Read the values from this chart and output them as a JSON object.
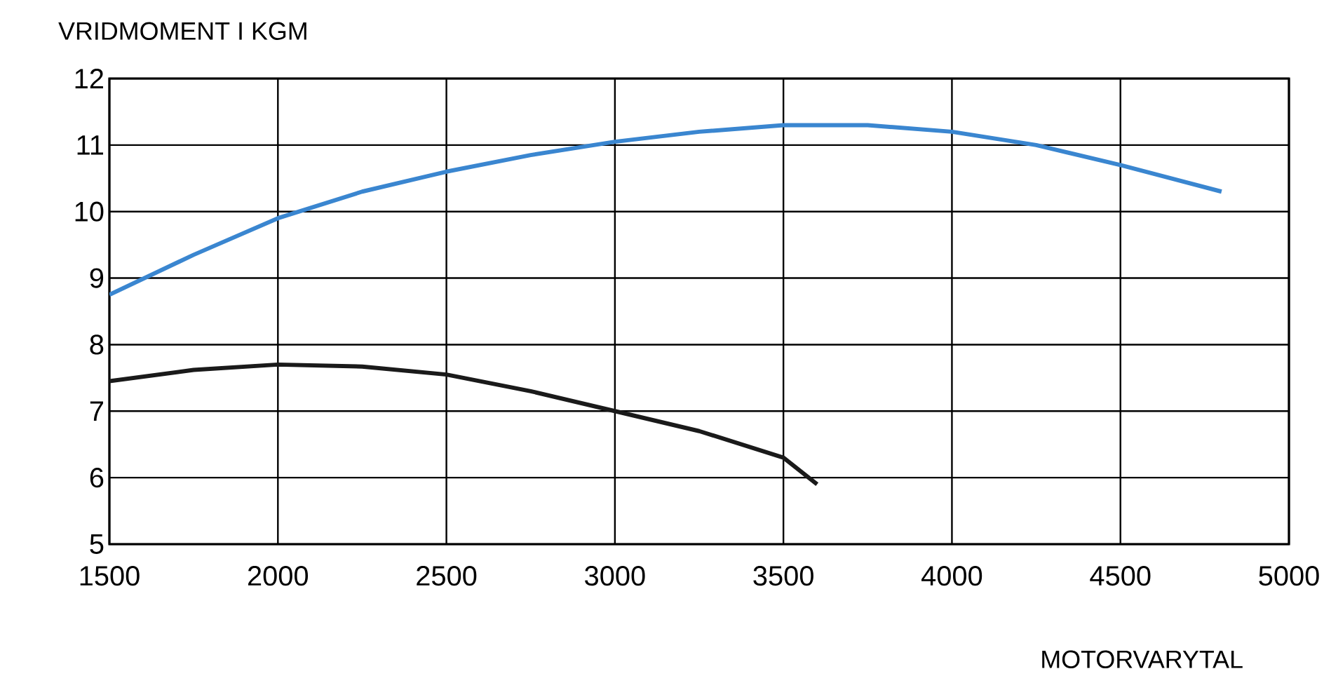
{
  "chart_data": {
    "type": "line",
    "ylabel": "VRIDMOMENT I KGM",
    "xlabel": "MOTORVARYTAL",
    "xlim": [
      1500,
      5000
    ],
    "xticks": [
      1500,
      2000,
      2500,
      3000,
      3500,
      4000,
      4500,
      5000
    ],
    "ylim": [
      5,
      12
    ],
    "yticks": [
      5,
      6,
      7,
      8,
      9,
      10,
      11,
      12
    ],
    "grid": true,
    "marker": "none",
    "line_style": "solid",
    "series": [
      {
        "color": "#3a86d0",
        "x": [
          1500,
          1750,
          2000,
          2250,
          2500,
          2750,
          3000,
          3250,
          3500,
          3750,
          4000,
          4250,
          4500,
          4800
        ],
        "values": [
          8.75,
          9.35,
          9.9,
          10.3,
          10.6,
          10.85,
          11.05,
          11.2,
          11.3,
          11.3,
          11.2,
          11.0,
          10.7,
          10.3
        ]
      },
      {
        "color": "#1a1a1a",
        "x": [
          1500,
          1750,
          2000,
          2250,
          2500,
          2750,
          3000,
          3250,
          3500,
          3600
        ],
        "values": [
          7.45,
          7.62,
          7.7,
          7.67,
          7.55,
          7.3,
          7.0,
          6.7,
          6.3,
          5.9
        ]
      }
    ]
  }
}
